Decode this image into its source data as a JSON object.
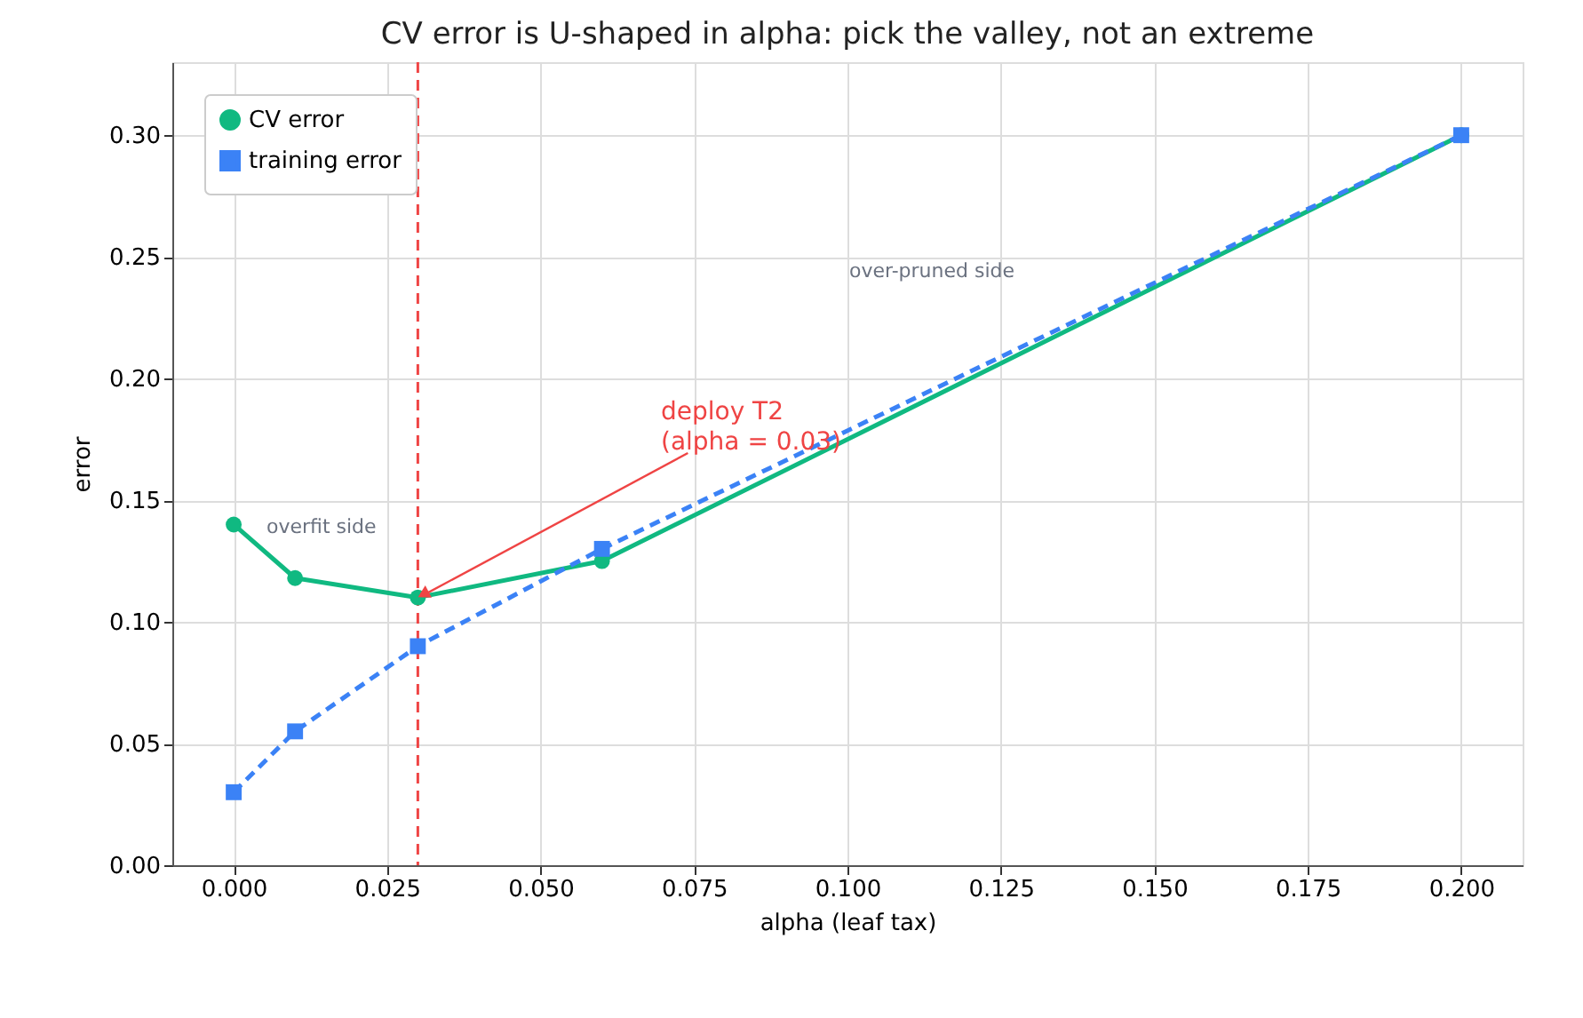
{
  "chart_data": {
    "type": "line",
    "title": "CV error is U-shaped in alpha: pick the valley, not an extreme",
    "xlabel": "alpha  (leaf tax)",
    "ylabel": "error",
    "x": [
      0.0,
      0.01,
      0.03,
      0.06,
      0.2
    ],
    "series": [
      {
        "name": "CV error",
        "color": "#10b981",
        "values": [
          0.14,
          0.118,
          0.11,
          0.125,
          0.3
        ],
        "marker": "circle",
        "line_style": "solid"
      },
      {
        "name": "training error",
        "color": "#3b82f6",
        "values": [
          0.03,
          0.055,
          0.09,
          0.13,
          0.3
        ],
        "marker": "square",
        "line_style": "dashed"
      }
    ],
    "xlim": [
      -0.01,
      0.21
    ],
    "xticks": [
      {
        "value": 0,
        "label": "0.000"
      },
      {
        "value": 0.025,
        "label": "0.025"
      },
      {
        "value": 0.05,
        "label": "0.050"
      },
      {
        "value": 0.075,
        "label": "0.075"
      },
      {
        "value": 0.1,
        "label": "0.100"
      },
      {
        "value": 0.125,
        "label": "0.125"
      },
      {
        "value": 0.15,
        "label": "0.150"
      },
      {
        "value": 0.175,
        "label": "0.175"
      },
      {
        "value": 0.2,
        "label": "0.200"
      }
    ],
    "ylim": [
      0,
      0.33
    ],
    "yticks": [
      {
        "value": 0,
        "label": "0.00"
      },
      {
        "value": 0.05,
        "label": "0.05"
      },
      {
        "value": 0.1,
        "label": "0.10"
      },
      {
        "value": 0.15,
        "label": "0.15"
      },
      {
        "value": 0.2,
        "label": "0.20"
      },
      {
        "value": 0.25,
        "label": "0.25"
      },
      {
        "value": 0.3,
        "label": "0.30"
      }
    ],
    "ref_lines": [
      {
        "axis": "x",
        "value": 0.03,
        "color": "#ef4444",
        "line_style": "dashed"
      }
    ],
    "annotations": [
      {
        "text": "deploy T2\n(alpha = 0.03)",
        "x": 0.03,
        "y": 0.11
      },
      "overfit side",
      "over-pruned side"
    ],
    "grid": true,
    "legend": "top left"
  }
}
